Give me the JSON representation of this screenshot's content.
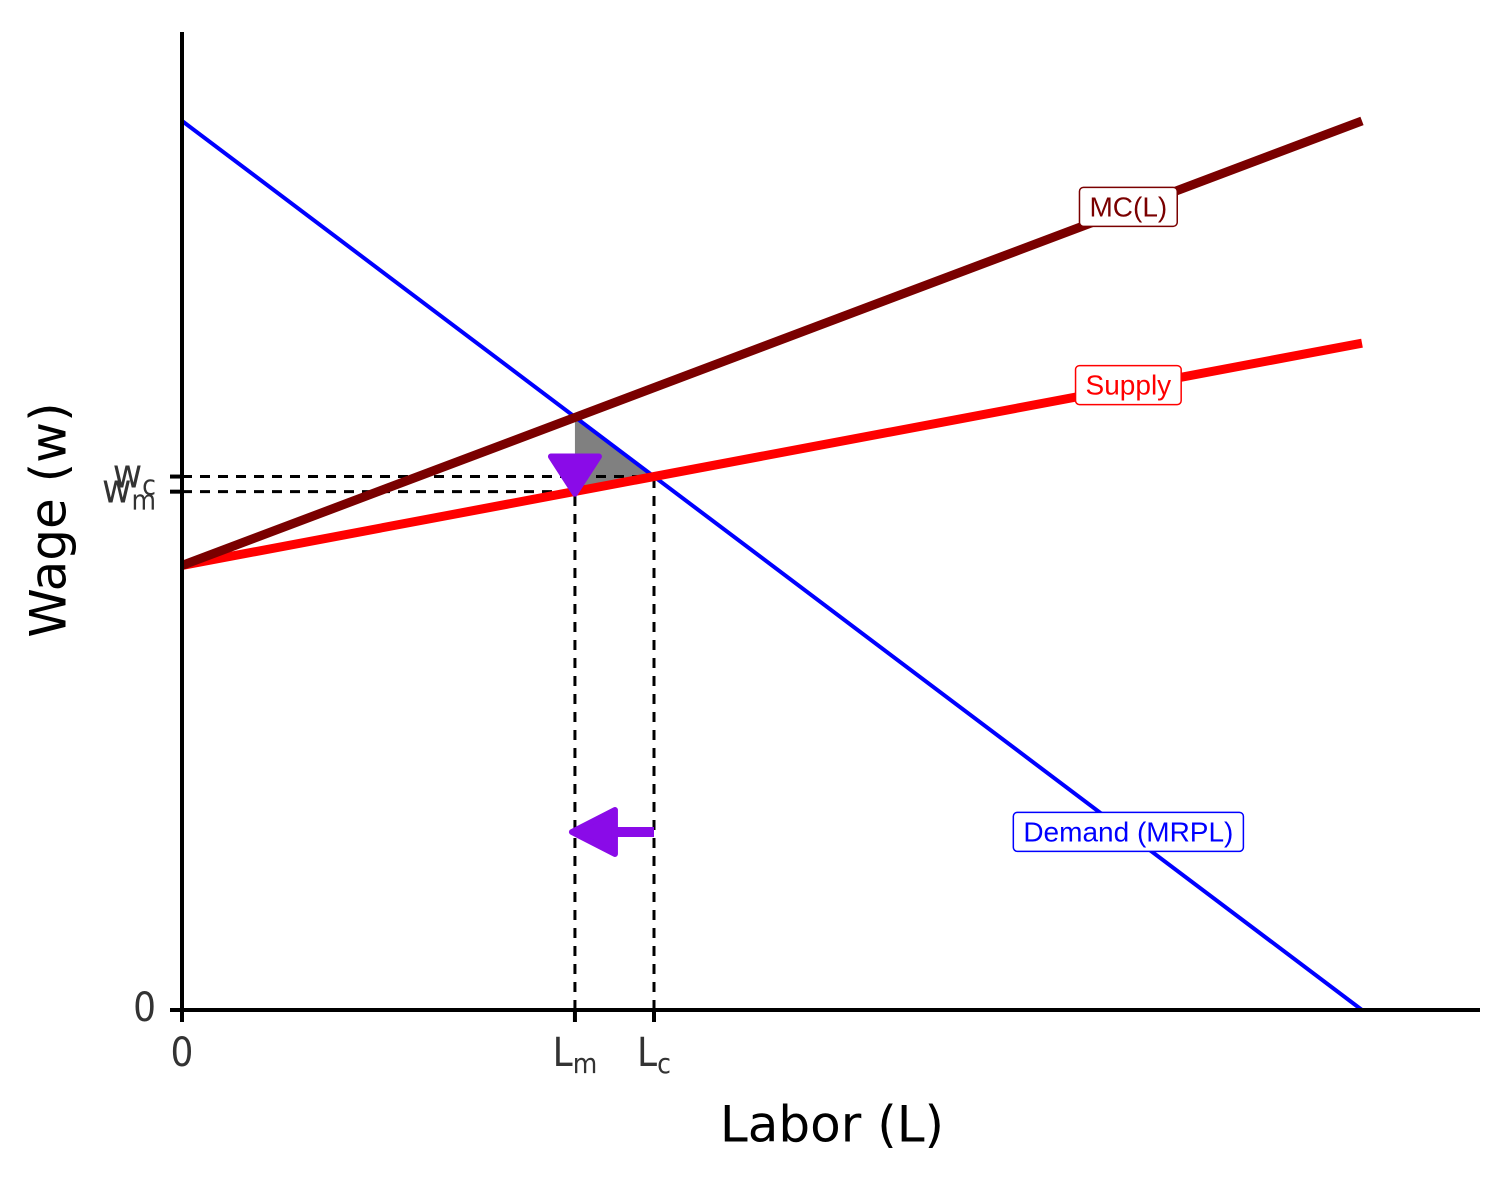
{
  "chart_data": {
    "type": "line",
    "x_label": "Labor (L)",
    "y_label": "Wage (w)",
    "xlim": [
      0,
      11
    ],
    "ylim": [
      0,
      11
    ],
    "xticks": [
      0,
      {
        "value": 3.33,
        "label": "L",
        "sub": "m"
      },
      {
        "value": 4,
        "label": "L",
        "sub": "c"
      }
    ],
    "yticks": [
      0,
      {
        "value": 5.83,
        "label": "w",
        "sub": "m"
      },
      {
        "value": 6,
        "label": "w",
        "sub": "c"
      }
    ],
    "x": [
      0,
      10
    ],
    "series": [
      {
        "name": "Demand (MRPL)",
        "color": "#0000ff",
        "values": [
          10,
          0
        ]
      },
      {
        "name": "Supply",
        "color": "#ff0000",
        "values": [
          5,
          7.5
        ]
      },
      {
        "name": "MC(L)",
        "color": "#7a0000",
        "values": [
          5,
          10
        ]
      }
    ]
  }
}
